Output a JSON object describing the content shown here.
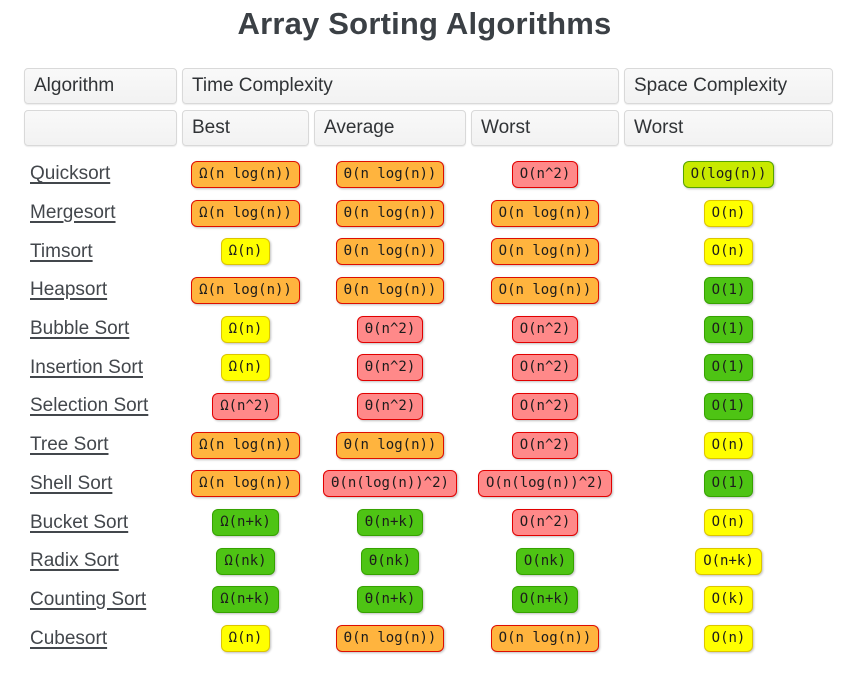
{
  "title": "Array Sorting Algorithms",
  "table": {
    "headers": {
      "algorithm": "Algorithm",
      "time": "Time Complexity",
      "space": "Space Complexity"
    },
    "subheaders": [
      "Best",
      "Average",
      "Worst",
      "Worst"
    ],
    "rows": [
      {
        "name": "Quicksort",
        "cells": [
          {
            "text": "Ω(n log(n))",
            "level": "bad"
          },
          {
            "text": "Θ(n log(n))",
            "level": "bad"
          },
          {
            "text": "O(n^2)",
            "level": "horrible"
          },
          {
            "text": "O(log(n))",
            "level": "good"
          }
        ]
      },
      {
        "name": "Mergesort",
        "cells": [
          {
            "text": "Ω(n log(n))",
            "level": "bad"
          },
          {
            "text": "Θ(n log(n))",
            "level": "bad"
          },
          {
            "text": "O(n log(n))",
            "level": "bad"
          },
          {
            "text": "O(n)",
            "level": "fair"
          }
        ]
      },
      {
        "name": "Timsort",
        "cells": [
          {
            "text": "Ω(n)",
            "level": "fair"
          },
          {
            "text": "Θ(n log(n))",
            "level": "bad"
          },
          {
            "text": "O(n log(n))",
            "level": "bad"
          },
          {
            "text": "O(n)",
            "level": "fair"
          }
        ]
      },
      {
        "name": "Heapsort",
        "cells": [
          {
            "text": "Ω(n log(n))",
            "level": "bad"
          },
          {
            "text": "Θ(n log(n))",
            "level": "bad"
          },
          {
            "text": "O(n log(n))",
            "level": "bad"
          },
          {
            "text": "O(1)",
            "level": "excellent"
          }
        ]
      },
      {
        "name": "Bubble Sort",
        "cells": [
          {
            "text": "Ω(n)",
            "level": "fair"
          },
          {
            "text": "Θ(n^2)",
            "level": "horrible"
          },
          {
            "text": "O(n^2)",
            "level": "horrible"
          },
          {
            "text": "O(1)",
            "level": "excellent"
          }
        ]
      },
      {
        "name": "Insertion Sort",
        "cells": [
          {
            "text": "Ω(n)",
            "level": "fair"
          },
          {
            "text": "Θ(n^2)",
            "level": "horrible"
          },
          {
            "text": "O(n^2)",
            "level": "horrible"
          },
          {
            "text": "O(1)",
            "level": "excellent"
          }
        ]
      },
      {
        "name": "Selection Sort",
        "cells": [
          {
            "text": "Ω(n^2)",
            "level": "horrible"
          },
          {
            "text": "Θ(n^2)",
            "level": "horrible"
          },
          {
            "text": "O(n^2)",
            "level": "horrible"
          },
          {
            "text": "O(1)",
            "level": "excellent"
          }
        ]
      },
      {
        "name": "Tree Sort",
        "cells": [
          {
            "text": "Ω(n log(n))",
            "level": "bad"
          },
          {
            "text": "Θ(n log(n))",
            "level": "bad"
          },
          {
            "text": "O(n^2)",
            "level": "horrible"
          },
          {
            "text": "O(n)",
            "level": "fair"
          }
        ]
      },
      {
        "name": "Shell Sort",
        "cells": [
          {
            "text": "Ω(n log(n))",
            "level": "bad"
          },
          {
            "text": "Θ(n(log(n))^2)",
            "level": "horrible"
          },
          {
            "text": "O(n(log(n))^2)",
            "level": "horrible"
          },
          {
            "text": "O(1)",
            "level": "excellent"
          }
        ]
      },
      {
        "name": "Bucket Sort",
        "cells": [
          {
            "text": "Ω(n+k)",
            "level": "excellent"
          },
          {
            "text": "Θ(n+k)",
            "level": "excellent"
          },
          {
            "text": "O(n^2)",
            "level": "horrible"
          },
          {
            "text": "O(n)",
            "level": "fair"
          }
        ]
      },
      {
        "name": "Radix Sort",
        "cells": [
          {
            "text": "Ω(nk)",
            "level": "excellent"
          },
          {
            "text": "Θ(nk)",
            "level": "excellent"
          },
          {
            "text": "O(nk)",
            "level": "excellent"
          },
          {
            "text": "O(n+k)",
            "level": "fair"
          }
        ]
      },
      {
        "name": "Counting Sort",
        "cells": [
          {
            "text": "Ω(n+k)",
            "level": "excellent"
          },
          {
            "text": "Θ(n+k)",
            "level": "excellent"
          },
          {
            "text": "O(n+k)",
            "level": "excellent"
          },
          {
            "text": "O(k)",
            "level": "fair"
          }
        ]
      },
      {
        "name": "Cubesort",
        "cells": [
          {
            "text": "Ω(n)",
            "level": "fair"
          },
          {
            "text": "Θ(n log(n))",
            "level": "bad"
          },
          {
            "text": "O(n log(n))",
            "level": "bad"
          },
          {
            "text": "O(n)",
            "level": "fair"
          }
        ]
      }
    ]
  },
  "levels": {
    "horrible": {
      "bg": "#ff8989",
      "border": "#e10000"
    },
    "bad": {
      "bg": "#ffb43e",
      "border": "#dd0e00"
    },
    "fair": {
      "bg": "#ffff00",
      "border": "#dcc500"
    },
    "good": {
      "bg": "#c8ea00",
      "border": "#57a300"
    },
    "excellent": {
      "bg": "#4ec414",
      "border": "#36a200"
    }
  },
  "badge_text_color": "#1c1c1c"
}
